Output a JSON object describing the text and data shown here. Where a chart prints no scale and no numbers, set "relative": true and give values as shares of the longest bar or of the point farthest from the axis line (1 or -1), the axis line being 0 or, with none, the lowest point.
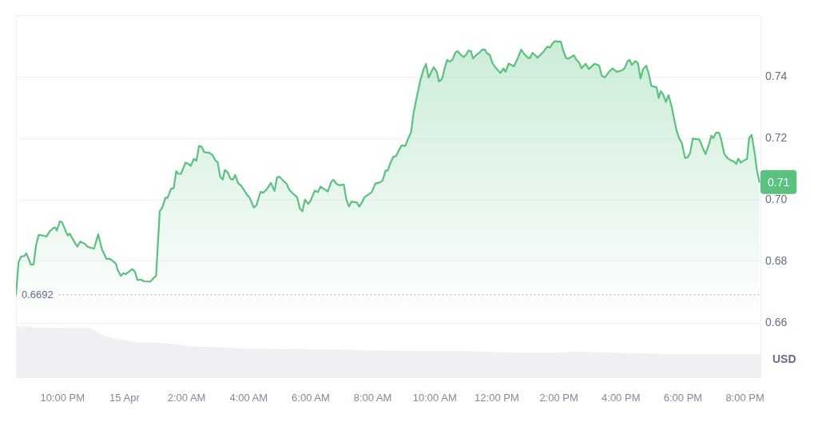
{
  "chart_data": [
    {
      "type": "area",
      "ylabel": "USD",
      "color": "#5ac17f",
      "marker": "none",
      "grid": "y",
      "tick_labels": "y",
      "xlim": [
        "--04-14T20:30",
        "--04-15T20:30"
      ],
      "ylim": [
        0.66,
        0.76
      ],
      "yticks": [
        0.66,
        0.68,
        {
          "value": 0.7,
          "label": "0.70"
        },
        0.72,
        0.74
      ],
      "x": [
        "--04-14T20:30",
        "--04-14T20:35",
        "--04-14T20:40",
        "--04-14T20:46",
        "--04-14T20:50",
        "--04-14T20:59",
        "--04-14T21:04",
        "--04-14T21:09",
        "--04-14T21:14",
        "--04-14T21:19",
        "--04-14T21:29",
        "--04-14T21:35",
        "--04-14T21:43",
        "--04-14T21:46",
        "--04-14T21:49",
        "--04-14T21:55",
        "--04-14T21:59",
        "--04-14T22:10",
        "--04-14T22:14",
        "--04-14T22:24",
        "--04-14T22:29",
        "--04-14T22:34",
        "--04-14T22:43",
        "--04-14T22:49",
        "--04-14T22:58",
        "--04-14T23:01",
        "--04-14T23:09",
        "--04-14T23:16",
        "--04-14T23:25",
        "--04-14T23:32",
        "--04-14T23:43",
        "--04-14T23:47",
        "--04-14T23:53",
        "--04-14T23:58",
        "--04-15T00:02",
        "--04-15T00:15",
        "--04-15T00:20",
        "--04-15T00:25",
        "--04-15T00:31",
        "--04-15T00:38",
        "--04-15T00:50",
        "--04-15T00:55",
        "--04-15T01:01",
        "--04-15T01:08",
        "--04-15T01:13",
        "--04-15T01:19",
        "--04-15T01:23",
        "--04-15T01:30",
        "--04-15T01:35",
        "--04-15T01:40",
        "--04-15T01:44",
        "--04-15T01:49",
        "--04-15T01:58",
        "--04-15T02:04",
        "--04-15T02:08",
        "--04-15T02:14",
        "--04-15T02:19",
        "--04-15T02:24",
        "--04-15T02:29",
        "--04-15T02:34",
        "--04-15T02:44",
        "--04-15T02:50",
        "--04-15T02:56",
        "--04-15T03:00",
        "--04-15T03:05",
        "--04-15T03:10",
        "--04-15T03:14",
        "--04-15T03:20",
        "--04-15T03:25",
        "--04-15T03:30",
        "--04-15T03:34",
        "--04-15T03:40",
        "--04-15T03:45",
        "--04-15T03:51",
        "--04-15T03:57",
        "--04-15T04:02",
        "--04-15T04:10",
        "--04-15T04:15",
        "--04-15T04:23",
        "--04-15T04:28",
        "--04-15T04:35",
        "--04-15T04:43",
        "--04-15T04:50",
        "--04-15T04:55",
        "--04-15T05:00",
        "--04-15T05:07",
        "--04-15T05:13",
        "--04-15T05:19",
        "--04-15T05:26",
        "--04-15T05:34",
        "--04-15T05:39",
        "--04-15T05:44",
        "--04-15T05:49",
        "--04-15T05:55",
        "--04-15T05:59",
        "--04-15T06:08",
        "--04-15T06:14",
        "--04-15T06:19",
        "--04-15T06:33",
        "--04-15T06:40",
        "--04-15T06:44",
        "--04-15T06:50",
        "--04-15T06:56",
        "--04-15T07:04",
        "--04-15T07:09",
        "--04-15T07:14",
        "--04-15T07:19",
        "--04-15T07:29",
        "--04-15T07:34",
        "--04-15T07:39",
        "--04-15T07:44",
        "--04-15T07:52",
        "--04-15T07:58",
        "--04-15T08:05",
        "--04-15T08:13",
        "--04-15T08:19",
        "--04-15T08:25",
        "--04-15T08:29",
        "--04-15T08:35",
        "--04-15T08:40",
        "--04-15T08:45",
        "--04-15T08:51",
        "--04-15T08:56",
        "--04-15T09:03",
        "--04-15T09:09",
        "--04-15T09:14",
        "--04-15T09:19",
        "--04-15T09:26",
        "--04-15T09:32",
        "--04-15T09:38",
        "--04-15T09:43",
        "--04-15T09:48",
        "--04-15T09:53",
        "--04-15T09:58",
        "--04-15T10:04",
        "--04-15T10:08",
        "--04-15T10:14",
        "--04-15T10:19",
        "--04-15T10:24",
        "--04-15T10:29",
        "--04-15T10:34",
        "--04-15T10:40",
        "--04-15T10:44",
        "--04-15T10:50",
        "--04-15T10:56",
        "--04-15T11:01",
        "--04-15T11:05",
        "--04-15T11:10",
        "--04-15T11:14",
        "--04-15T11:21",
        "--04-15T11:27",
        "--04-15T11:32",
        "--04-15T11:37",
        "--04-15T11:41",
        "--04-15T11:46",
        "--04-15T11:52",
        "--04-15T11:58",
        "--04-15T12:07",
        "--04-15T12:13",
        "--04-15T12:17",
        "--04-15T12:23",
        "--04-15T12:33",
        "--04-15T12:41",
        "--04-15T12:47",
        "--04-15T12:54",
        "--04-15T13:00",
        "--04-15T13:04",
        "--04-15T13:09",
        "--04-15T13:19",
        "--04-15T13:29",
        "--04-15T13:38",
        "--04-15T13:43",
        "--04-15T13:48",
        "--04-15T13:53",
        "--04-15T13:58",
        "--04-15T14:04",
        "--04-15T14:08",
        "--04-15T14:14",
        "--04-15T14:19",
        "--04-15T14:29",
        "--04-15T14:34",
        "--04-15T14:40",
        "--04-15T14:44",
        "--04-15T14:52",
        "--04-15T14:58",
        "--04-15T15:09",
        "--04-15T15:18",
        "--04-15T15:23",
        "--04-15T15:29",
        "--04-15T15:37",
        "--04-15T15:44",
        "--04-15T15:52",
        "--04-15T16:01",
        "--04-15T16:07",
        "--04-15T16:13",
        "--04-15T16:17",
        "--04-15T16:21",
        "--04-15T16:28",
        "--04-15T16:33",
        "--04-15T16:38",
        "--04-15T16:43",
        "--04-15T16:49",
        "--04-15T16:54",
        "--04-15T16:59",
        "--04-15T17:09",
        "--04-15T17:13",
        "--04-15T17:17",
        "--04-15T17:22",
        "--04-15T17:27",
        "--04-15T17:32",
        "--04-15T17:38",
        "--04-15T17:43",
        "--04-15T17:48",
        "--04-15T17:53",
        "--04-15T17:58",
        "--04-15T18:04",
        "--04-15T18:09",
        "--04-15T18:14",
        "--04-15T18:19",
        "--04-15T18:25",
        "--04-15T18:31",
        "--04-15T18:34",
        "--04-15T18:40",
        "--04-15T18:44",
        "--04-15T18:50",
        "--04-15T18:55",
        "--04-15T18:59",
        "--04-15T19:04",
        "--04-15T19:10",
        "--04-15T19:14",
        "--04-15T19:20",
        "--04-15T19:26",
        "--04-15T19:34",
        "--04-15T19:38",
        "--04-15T19:43",
        "--04-15T19:47",
        "--04-15T19:52",
        "--04-15T19:57",
        "--04-15T20:04",
        "--04-15T20:08",
        "--04-15T20:13",
        "--04-15T20:19",
        "--04-15T20:23",
        "--04-15T20:28"
      ],
      "values": [
        0.6692,
        0.6797,
        0.6816,
        0.6817,
        0.6826,
        0.6789,
        0.679,
        0.6854,
        0.6886,
        0.6885,
        0.6881,
        0.6897,
        0.6909,
        0.691,
        0.69,
        0.693,
        0.6927,
        0.6884,
        0.689,
        0.686,
        0.6848,
        0.6864,
        0.6857,
        0.6847,
        0.6843,
        0.6841,
        0.6888,
        0.6841,
        0.6808,
        0.6808,
        0.6793,
        0.6771,
        0.6753,
        0.6762,
        0.6758,
        0.6775,
        0.6767,
        0.6739,
        0.6741,
        0.6735,
        0.6734,
        0.6744,
        0.6753,
        0.6962,
        0.6975,
        0.7007,
        0.7006,
        0.7036,
        0.7038,
        0.7093,
        0.7085,
        0.7084,
        0.7121,
        0.7117,
        0.711,
        0.7133,
        0.7127,
        0.7175,
        0.7173,
        0.7155,
        0.7153,
        0.7146,
        0.7127,
        0.7123,
        0.7075,
        0.7066,
        0.7097,
        0.7088,
        0.7068,
        0.7066,
        0.7081,
        0.7053,
        0.7047,
        0.7032,
        0.7016,
        0.7007,
        0.6975,
        0.6982,
        0.7026,
        0.7023,
        0.7034,
        0.7055,
        0.7029,
        0.7073,
        0.7075,
        0.7062,
        0.7053,
        0.7032,
        0.702,
        0.7008,
        0.6972,
        0.6963,
        0.7001,
        0.6987,
        0.6994,
        0.703,
        0.7025,
        0.7043,
        0.7027,
        0.7059,
        0.7065,
        0.7052,
        0.7047,
        0.705,
        0.7001,
        0.6978,
        0.6994,
        0.6992,
        0.6978,
        0.6991,
        0.7008,
        0.7018,
        0.7025,
        0.7053,
        0.7056,
        0.7062,
        0.7095,
        0.7095,
        0.7123,
        0.714,
        0.7142,
        0.7162,
        0.7177,
        0.7175,
        0.7201,
        0.7218,
        0.7283,
        0.734,
        0.7388,
        0.7423,
        0.7442,
        0.7397,
        0.7414,
        0.7431,
        0.7416,
        0.7385,
        0.7392,
        0.7427,
        0.7455,
        0.7449,
        0.7455,
        0.7479,
        0.7483,
        0.7472,
        0.7464,
        0.7472,
        0.7485,
        0.7483,
        0.7459,
        0.7472,
        0.7479,
        0.7488,
        0.7488,
        0.7476,
        0.7472,
        0.7443,
        0.7429,
        0.7412,
        0.7427,
        0.7416,
        0.7443,
        0.7434,
        0.7462,
        0.7488,
        0.7472,
        0.7462,
        0.746,
        0.7478,
        0.7462,
        0.7479,
        0.7498,
        0.7495,
        0.7509,
        0.7516,
        0.7514,
        0.7514,
        0.7488,
        0.746,
        0.7459,
        0.747,
        0.7455,
        0.7444,
        0.7427,
        0.7442,
        0.7425,
        0.7442,
        0.7436,
        0.7403,
        0.7398,
        0.7416,
        0.7427,
        0.7416,
        0.742,
        0.7427,
        0.7451,
        0.7455,
        0.7438,
        0.7451,
        0.7444,
        0.7394,
        0.7425,
        0.7436,
        0.7409,
        0.737,
        0.7366,
        0.7331,
        0.7353,
        0.7342,
        0.7318,
        0.734,
        0.7305,
        0.7262,
        0.7223,
        0.7199,
        0.7184,
        0.7136,
        0.7138,
        0.7153,
        0.7199,
        0.7197,
        0.7197,
        0.7188,
        0.7162,
        0.7149,
        0.7179,
        0.7208,
        0.7201,
        0.7218,
        0.7218,
        0.7197,
        0.7149,
        0.7136,
        0.7127,
        0.7125,
        0.7116,
        0.7134,
        0.7121,
        0.7127,
        0.7133,
        0.7201,
        0.7211,
        0.7149,
        0.7097,
        0.7058
      ],
      "ref_lines": [
        {
          "axis": "y",
          "value": 0.6692,
          "label": "0.6692",
          "color": "#a6b0c3",
          "line_style": "dotted"
        }
      ],
      "annotations": [
        "0.71"
      ]
    },
    {
      "type": "area",
      "relative": true,
      "color": "#eef0f4",
      "marker": "none",
      "tick_labels": "x",
      "xlim": [
        "--04-14T20:30",
        "--04-15T20:30"
      ],
      "xticks": [
        {
          "value": "--04-14T22:00",
          "label": "10:00 PM"
        },
        {
          "value": "--04-15",
          "label": "15 Apr"
        },
        {
          "value": "--04-15T02:00",
          "label": "2:00 AM"
        },
        {
          "value": "--04-15T04:00",
          "label": "4:00 AM"
        },
        {
          "value": "--04-15T06:00",
          "label": "6:00 AM"
        },
        {
          "value": "--04-15T08:00",
          "label": "8:00 AM"
        },
        {
          "value": "--04-15T10:00",
          "label": "10:00 AM"
        },
        {
          "value": "--04-15T12:00",
          "label": "12:00 PM"
        },
        {
          "value": "--04-15T14:00",
          "label": "2:00 PM"
        },
        {
          "value": "--04-15T16:00",
          "label": "4:00 PM"
        },
        {
          "value": "--04-15T18:00",
          "label": "6:00 PM"
        },
        {
          "value": "--04-15T20:00",
          "label": "8:00 PM"
        }
      ],
      "x": [
        "--04-14T20:30",
        "--04-14T20:59",
        "--04-14T21:04",
        "--04-14T22:55",
        "--04-14T23:03",
        "--04-14T23:13",
        "--04-14T23:34",
        "--04-15T00:05",
        "--04-15T00:25",
        "--04-15T01:07",
        "--04-15T01:27",
        "--04-15T01:49",
        "--04-15T02:08",
        "--04-15T03:06",
        "--04-15T03:46",
        "--04-15T04:59",
        "--04-15T06:43",
        "--04-15T08:00",
        "--04-15T09:22",
        "--04-15T11:00",
        "--04-15T12:48",
        "--04-15T13:54",
        "--04-15T14:36",
        "--04-15T16:18",
        "--04-15T17:24",
        "--04-15T20:30"
      ],
      "values": [
        1,
        0.99,
        0.97,
        0.96,
        0.91,
        0.84,
        0.78,
        0.72,
        0.69,
        0.68,
        0.66,
        0.64,
        0.61,
        0.59,
        0.57,
        0.56,
        0.55,
        0.53,
        0.52,
        0.52,
        0.49,
        0.49,
        0.51,
        0.48,
        0.46,
        0.46
      ]
    }
  ]
}
